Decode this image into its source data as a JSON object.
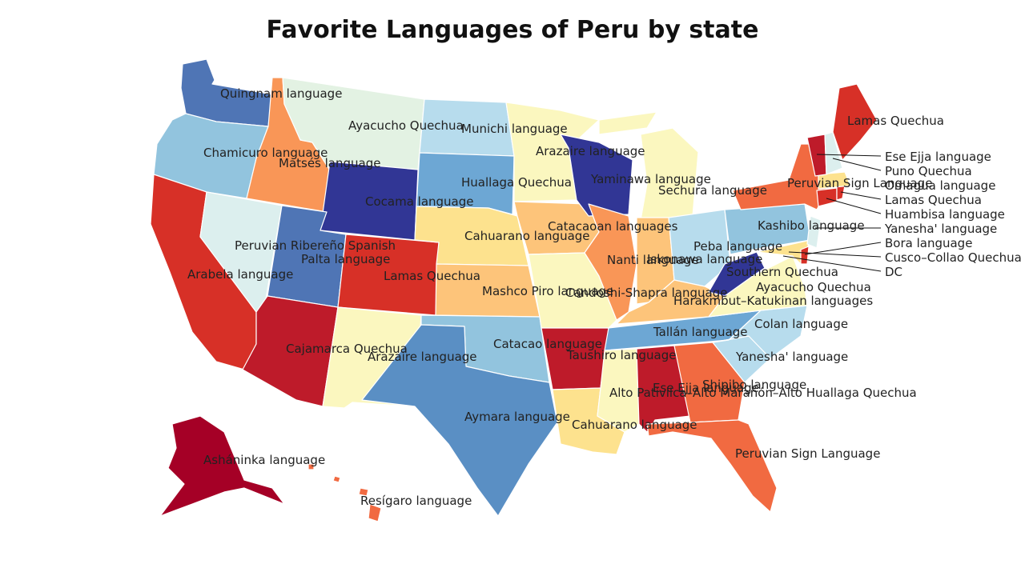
{
  "title": "Favorite Languages of Peru by state",
  "colors": {
    "dark_red": "#a50026",
    "crimson": "#be1b2a",
    "red": "#d73027",
    "orange_red": "#f16a41",
    "orange": "#f99657",
    "light_orange": "#fdc47a",
    "pale_yellow": "#fde28e",
    "cream": "#fbf7bf",
    "mint": "#e3f2e3",
    "pale_blue": "#dcefee",
    "light_blue": "#b7dced",
    "sky_blue": "#92c4de",
    "steel_blue": "#6da7d4",
    "blue": "#5a8fc4",
    "mid_blue": "#4f75b5",
    "navy": "#313695"
  },
  "labels": {
    "WA": "Quingnam language",
    "MT": "Ayacucho Quechua",
    "ND": "Munichi language",
    "MN": "Arazaire language",
    "ME": "Lamas Quechua",
    "OR": "Chamicuro language",
    "ID": "Matsés language",
    "WY": "Cocama language",
    "SD": "Huallaga Quechua",
    "WI": "Yaminawa language",
    "MI": "Sechura language",
    "NV": "Arabela language",
    "UT": "Palta language",
    "UT_extra": "Peruvian Ribereño Spanish",
    "CO": "Lamas Quechua",
    "NE": "Cahuarano language",
    "IA": "Catacaoan languages",
    "IL": "Nanti language",
    "IN": "Iskonawa language",
    "OH": "Peba language",
    "PA": "Kashibo language",
    "NY": "Peruvian Sign Language",
    "CA": "Cajamarca Quechua",
    "AZ": "Cajamarca Quechua",
    "NM": "Arazaire language",
    "KS": "Mashco Piro language",
    "MO": "Candoshi-Shapra language",
    "KY": "Harakmbut–Katukinan languages",
    "WV": "Southern Quechua",
    "VA": "Ayacucho Quechua",
    "OK": "Catacao language",
    "AR": "Taushiro language",
    "TN": "Tallán language",
    "NC": "Colan language",
    "SC": "Yanesha' language",
    "TX": "Aymara language",
    "LA": "Cahuarano language",
    "MS": "Alto Pativilca–Alto Marañón–Alto Huallaga Quechua",
    "AL": "Ese Ejja language",
    "GA": "Shipibo language",
    "FL": "Peruvian Sign Language",
    "AK": "Asháninka language",
    "HI": "Resígaro language",
    "VT": "Ese Ejja language",
    "NH": "Puno Quechua",
    "MA": "Omagua language",
    "RI": "Lamas Quechua",
    "CT": "Huambisa language",
    "NJ": "Yanesha' language",
    "DE": "Bora language",
    "MD": "Cusco–Collao Quechua",
    "DC": "DC"
  }
}
